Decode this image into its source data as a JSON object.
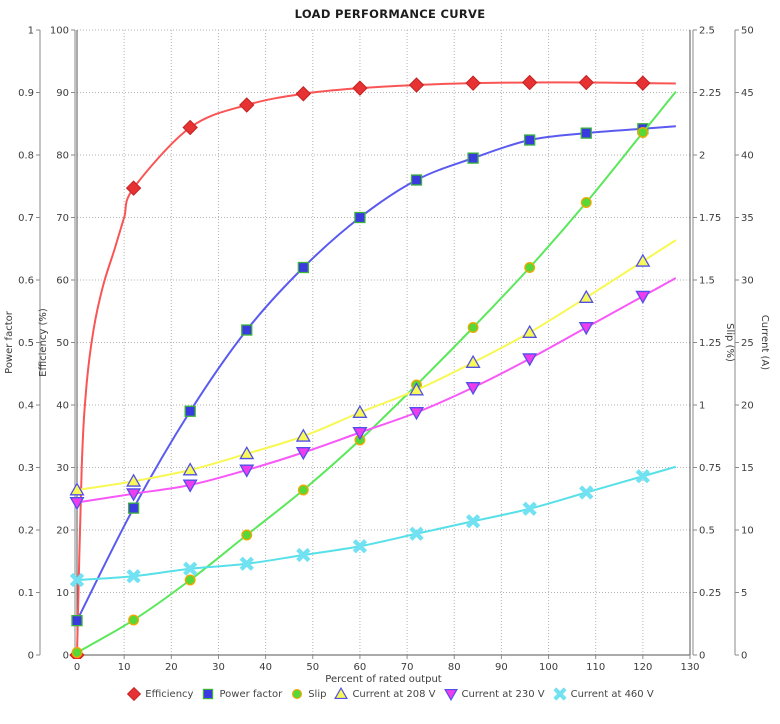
{
  "chart_data": {
    "type": "scatter",
    "trend_lines": true,
    "title": "LOAD PERFORMANCE CURVE",
    "x_axis": {
      "label": "Percent of rated output",
      "min": 0,
      "max": 130,
      "tick_step": 10,
      "ticks": [
        0,
        10,
        20,
        30,
        40,
        50,
        60,
        70,
        80,
        90,
        100,
        110,
        120,
        130
      ]
    },
    "y_axes": [
      {
        "id": "power_factor",
        "label": "Power factor",
        "side": "left",
        "min": 0,
        "max": 1,
        "tick_step": 0.1,
        "ticks": [
          0,
          0.1,
          0.2,
          0.3,
          0.4,
          0.5,
          0.6,
          0.7,
          0.8,
          0.9,
          1
        ]
      },
      {
        "id": "efficiency",
        "label": "Efficiency (%)",
        "side": "left",
        "min": 0,
        "max": 100,
        "tick_step": 10,
        "ticks": [
          0,
          10,
          20,
          30,
          40,
          50,
          60,
          70,
          80,
          90,
          100
        ]
      },
      {
        "id": "slip",
        "label": "Slip (%)",
        "side": "right",
        "min": 0,
        "max": 2.5,
        "tick_step": 0.25,
        "ticks": [
          0,
          0.25,
          0.5,
          0.75,
          1,
          1.25,
          1.5,
          1.75,
          2,
          2.25,
          2.5
        ]
      },
      {
        "id": "current",
        "label": "Current (A)",
        "side": "right",
        "min": 0,
        "max": 50,
        "tick_step": 5,
        "ticks": [
          0,
          5,
          10,
          15,
          20,
          25,
          30,
          35,
          40,
          45,
          50
        ]
      }
    ],
    "x": [
      0,
      12,
      24,
      36,
      48,
      60,
      72,
      84,
      96,
      108,
      120
    ],
    "series": [
      {
        "id": "efficiency",
        "name": "Efficiency",
        "axis": "efficiency",
        "marker": "diamond",
        "line_color": "#fa5555",
        "marker_fill": "#e63232",
        "marker_stroke": "#c42323",
        "values": [
          0,
          74.7,
          84.4,
          88.0,
          89.8,
          90.7,
          91.2,
          91.5,
          91.6,
          91.6,
          91.5
        ],
        "trend_waypoints": [
          [
            1,
            30
          ],
          [
            2,
            43
          ],
          [
            3.5,
            52
          ],
          [
            5.5,
            59
          ],
          [
            8,
            65
          ],
          [
            10,
            70
          ]
        ]
      },
      {
        "id": "power_factor",
        "name": "Power factor",
        "axis": "power_factor",
        "marker": "square",
        "line_color": "#5a5af0",
        "marker_fill": "#3a3ade",
        "marker_stroke": "#3cb43c",
        "values": [
          0.055,
          0.235,
          0.39,
          0.52,
          0.62,
          0.7,
          0.76,
          0.795,
          0.824,
          0.835,
          0.842
        ]
      },
      {
        "id": "slip",
        "name": "Slip",
        "axis": "slip",
        "marker": "circle",
        "line_color": "#5ae85a",
        "marker_fill": "#55d838",
        "marker_stroke": "#f0a800",
        "values": [
          0.01,
          0.14,
          0.3,
          0.48,
          0.66,
          0.86,
          1.08,
          1.31,
          1.55,
          1.81,
          2.09
        ]
      },
      {
        "id": "current_208",
        "name": "Current at 208 V",
        "axis": "current",
        "marker": "triangle-up",
        "line_color": "#f8f852",
        "marker_fill": "#f8f858",
        "marker_stroke": "#5050e8",
        "values": [
          13.2,
          13.9,
          14.8,
          16.1,
          17.5,
          19.4,
          21.2,
          23.4,
          25.8,
          28.6,
          31.5
        ]
      },
      {
        "id": "current_230",
        "name": "Current at 230 V",
        "axis": "current",
        "marker": "triangle-down",
        "line_color": "#f858f8",
        "marker_fill": "#ee3cee",
        "marker_stroke": "#5050e8",
        "values": [
          12.2,
          12.9,
          13.6,
          14.8,
          16.2,
          17.8,
          19.4,
          21.4,
          23.7,
          26.2,
          28.7
        ]
      },
      {
        "id": "current_460",
        "name": "Current at 460 V",
        "axis": "current",
        "marker": "xmark",
        "line_color": "#58e0e8",
        "marker_fill": "#72e2f2",
        "marker_stroke": "#72e2f2",
        "values": [
          6.0,
          6.3,
          6.9,
          7.3,
          8.0,
          8.7,
          9.7,
          10.7,
          11.7,
          13.0,
          14.3
        ]
      }
    ],
    "grid": true,
    "legend_position": "bottom"
  }
}
